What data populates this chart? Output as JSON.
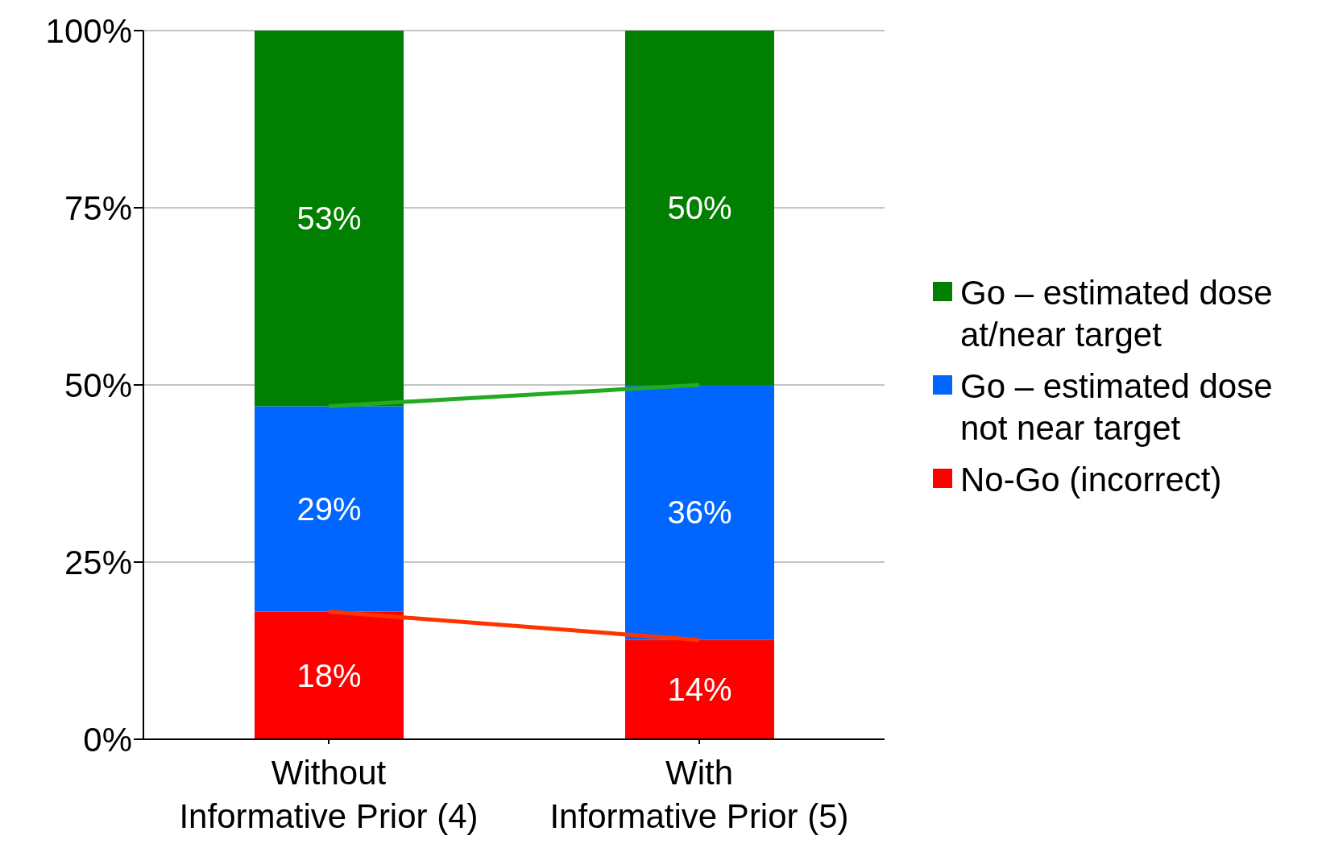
{
  "chart_data": {
    "type": "bar",
    "stacked": true,
    "categories": [
      "Without\nInformative Prior (4)",
      "With\nInformative Prior (5)"
    ],
    "series": [
      {
        "name": "No-Go (incorrect)",
        "color": "#ff0000",
        "values": [
          18,
          14
        ],
        "value_labels": [
          "18%",
          "14%"
        ]
      },
      {
        "name": "Go – estimated dose not near target",
        "color": "#0066ff",
        "values": [
          29,
          36
        ],
        "value_labels": [
          "29%",
          "36%"
        ]
      },
      {
        "name": "Go – estimated dose at/near target",
        "color": "#007f00",
        "values": [
          53,
          50
        ],
        "value_labels": [
          "53%",
          "50%"
        ]
      },
      {
        "type": "line",
        "color": "#22aa22",
        "values": [
          47,
          50
        ]
      },
      {
        "type": "line",
        "color": "#ff3300",
        "values": [
          18,
          14
        ]
      }
    ],
    "ylim": [
      0,
      100
    ],
    "yticks": [
      {
        "value": 0,
        "label": "0%"
      },
      {
        "value": 25,
        "label": "25%"
      },
      {
        "value": 50,
        "label": "50%"
      },
      {
        "value": 75,
        "label": "75%"
      },
      {
        "value": 100,
        "label": "100%"
      }
    ],
    "grid": "y",
    "legend": "right",
    "marker": "none"
  }
}
